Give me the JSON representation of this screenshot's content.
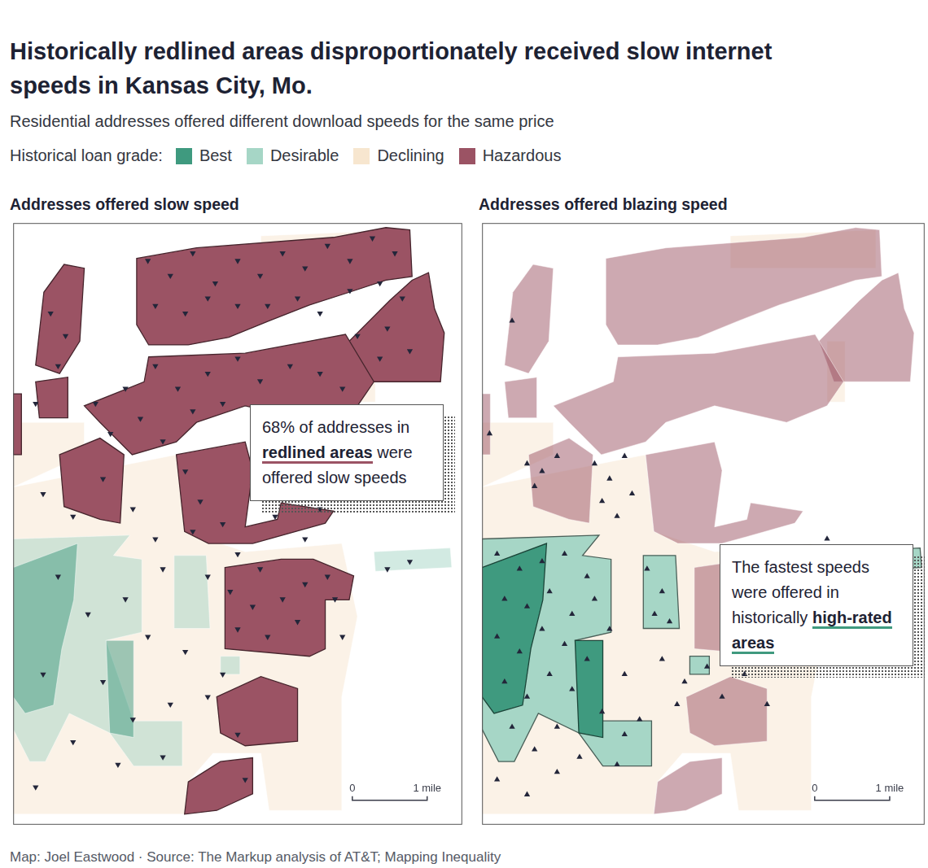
{
  "title": "Historically redlined areas disproportionately received slow internet speeds in Kansas City, Mo.",
  "subtitle": "Residential addresses offered different download speeds for the same price",
  "legend_title": "Historical loan grade:",
  "grades": [
    {
      "name": "Best",
      "color": "#3f9a7f"
    },
    {
      "name": "Desirable",
      "color": "#a6d6c6"
    },
    {
      "name": "Declining",
      "color": "#f7e6cf"
    },
    {
      "name": "Hazardous",
      "color": "#9b5364"
    }
  ],
  "source": "Map: Joel Eastwood · Source: The Markup analysis of AT&T; Mapping Inequality",
  "areas": [
    {
      "grade": "Declining",
      "polygon": [
        [
          0,
          4.49
        ],
        [
          2.18,
          4.92
        ],
        [
          2.29,
          3.9
        ],
        [
          3.1,
          3.63
        ],
        [
          4.39,
          3.74
        ],
        [
          4.6,
          2.77
        ],
        [
          4.39,
          1.7
        ],
        [
          4.39,
          0.19
        ],
        [
          3.42,
          0.19
        ],
        [
          3.31,
          0.95
        ],
        [
          2.67,
          0.95
        ],
        [
          2.34,
          0.57
        ],
        [
          2.29,
          0.14
        ],
        [
          0,
          0.14
        ]
      ]
    },
    {
      "grade": "Declining",
      "polygon": [
        [
          3.31,
          7.83
        ],
        [
          5.25,
          7.91
        ],
        [
          5.25,
          7.4
        ],
        [
          3.31,
          7.4
        ]
      ]
    },
    {
      "grade": "Declining",
      "polygon": [
        [
          4.6,
          6.43
        ],
        [
          4.84,
          6.43
        ],
        [
          4.84,
          5.62
        ],
        [
          4.6,
          5.62
        ]
      ]
    },
    {
      "grade": "Declining",
      "polygon": [
        [
          0,
          5.35
        ],
        [
          0.95,
          5.35
        ],
        [
          0.95,
          4.92
        ],
        [
          0,
          4.49
        ]
      ]
    },
    {
      "grade": "Desirable",
      "polygon": [
        [
          0,
          3.8
        ],
        [
          1.56,
          3.85
        ],
        [
          1.34,
          3.58
        ],
        [
          1.72,
          3.53
        ],
        [
          1.72,
          2.56
        ],
        [
          1.24,
          2.45
        ],
        [
          1.61,
          1.38
        ],
        [
          2.26,
          1.38
        ],
        [
          2.26,
          0.78
        ],
        [
          1.61,
          0.78
        ],
        [
          1.29,
          1.22
        ],
        [
          0.75,
          1.48
        ],
        [
          0.43,
          0.84
        ],
        [
          0.22,
          0.84
        ],
        [
          0,
          1.27
        ]
      ]
    },
    {
      "grade": "Desirable",
      "polygon": [
        [
          2.15,
          3.58
        ],
        [
          2.58,
          3.58
        ],
        [
          2.63,
          2.61
        ],
        [
          2.15,
          2.61
        ]
      ]
    },
    {
      "grade": "Desirable",
      "polygon": [
        [
          2.77,
          2.24
        ],
        [
          3.03,
          2.24
        ],
        [
          3.03,
          2.0
        ],
        [
          2.77,
          2.0
        ]
      ]
    },
    {
      "grade": "Desirable",
      "polygon": [
        [
          4.82,
          3.63
        ],
        [
          5.84,
          3.68
        ],
        [
          5.86,
          3.42
        ],
        [
          4.84,
          3.37
        ]
      ]
    },
    {
      "grade": "Best",
      "polygon": [
        [
          0,
          3.42
        ],
        [
          0.86,
          3.74
        ],
        [
          0.81,
          2.99
        ],
        [
          0.65,
          2.34
        ],
        [
          0.54,
          1.59
        ],
        [
          0.16,
          1.48
        ],
        [
          0,
          1.7
        ]
      ]
    },
    {
      "grade": "Best",
      "polygon": [
        [
          1.24,
          2.45
        ],
        [
          1.61,
          2.45
        ],
        [
          1.61,
          1.16
        ],
        [
          1.29,
          1.22
        ]
      ]
    },
    {
      "grade": "Hazardous",
      "polygon": [
        [
          1.65,
          7.53
        ],
        [
          2.45,
          7.67
        ],
        [
          4.28,
          7.81
        ],
        [
          4.98,
          7.94
        ],
        [
          5.3,
          7.91
        ],
        [
          5.33,
          7.29
        ],
        [
          4.98,
          7.24
        ],
        [
          4.49,
          7.08
        ],
        [
          3.96,
          6.91
        ],
        [
          3.42,
          6.7
        ],
        [
          2.88,
          6.48
        ],
        [
          2.34,
          6.38
        ],
        [
          1.81,
          6.38
        ],
        [
          1.65,
          6.65
        ]
      ]
    },
    {
      "grade": "Hazardous",
      "polygon": [
        [
          5.03,
          6.97
        ],
        [
          5.33,
          7.24
        ],
        [
          5.55,
          7.34
        ],
        [
          5.63,
          6.86
        ],
        [
          5.76,
          6.54
        ],
        [
          5.71,
          5.89
        ],
        [
          4.69,
          5.89
        ],
        [
          4.49,
          6.43
        ]
      ]
    },
    {
      "grade": "Hazardous",
      "polygon": [
        [
          1.81,
          6.22
        ],
        [
          3.1,
          6.27
        ],
        [
          3.96,
          6.43
        ],
        [
          4.44,
          6.52
        ],
        [
          4.82,
          5.89
        ],
        [
          4.6,
          5.57
        ],
        [
          4.06,
          5.35
        ],
        [
          3.1,
          5.57
        ],
        [
          2.45,
          5.35
        ],
        [
          2.18,
          5.09
        ],
        [
          1.59,
          4.92
        ],
        [
          1.16,
          5.35
        ],
        [
          0.95,
          5.57
        ],
        [
          1.48,
          5.78
        ],
        [
          1.75,
          5.89
        ]
      ]
    },
    {
      "grade": "Hazardous",
      "polygon": [
        [
          2.18,
          4.92
        ],
        [
          3.1,
          5.09
        ],
        [
          3.2,
          4.71
        ],
        [
          3.1,
          3.96
        ],
        [
          3.53,
          4.06
        ],
        [
          3.58,
          4.28
        ],
        [
          4.28,
          4.17
        ],
        [
          4.17,
          4.01
        ],
        [
          3.53,
          3.83
        ],
        [
          3.2,
          3.74
        ],
        [
          2.61,
          3.74
        ],
        [
          2.29,
          3.9
        ]
      ]
    },
    {
      "grade": "Hazardous",
      "polygon": [
        [
          0.41,
          7.08
        ],
        [
          0.68,
          7.45
        ],
        [
          0.95,
          7.4
        ],
        [
          0.89,
          6.43
        ],
        [
          0.62,
          6.0
        ],
        [
          0.3,
          6.11
        ]
      ]
    },
    {
      "grade": "Hazardous",
      "polygon": [
        [
          0.3,
          5.89
        ],
        [
          0.73,
          5.95
        ],
        [
          0.73,
          5.41
        ],
        [
          0.35,
          5.41
        ]
      ]
    },
    {
      "grade": "Hazardous",
      "polygon": [
        [
          0,
          5.73
        ],
        [
          0.11,
          5.73
        ],
        [
          0.11,
          4.92
        ],
        [
          0,
          4.92
        ]
      ]
    },
    {
      "grade": "Hazardous",
      "polygon": [
        [
          0.62,
          4.92
        ],
        [
          1.16,
          5.14
        ],
        [
          1.48,
          4.92
        ],
        [
          1.43,
          4.01
        ],
        [
          1.16,
          4.06
        ],
        [
          0.68,
          4.23
        ]
      ]
    },
    {
      "grade": "Hazardous",
      "polygon": [
        [
          2.83,
          3.42
        ],
        [
          3.58,
          3.53
        ],
        [
          4.01,
          3.53
        ],
        [
          4.55,
          3.31
        ],
        [
          4.49,
          2.99
        ],
        [
          4.17,
          2.99
        ],
        [
          4.17,
          2.34
        ],
        [
          3.96,
          2.24
        ],
        [
          2.83,
          2.34
        ]
      ]
    },
    {
      "grade": "Hazardous",
      "polygon": [
        [
          2.72,
          1.7
        ],
        [
          3.31,
          1.97
        ],
        [
          3.8,
          1.81
        ],
        [
          3.8,
          1.11
        ],
        [
          3.1,
          1.05
        ],
        [
          2.77,
          1.22
        ]
      ]
    },
    {
      "grade": "Hazardous",
      "polygon": [
        [
          2.34,
          0.57
        ],
        [
          2.77,
          0.84
        ],
        [
          3.2,
          0.89
        ],
        [
          3.2,
          0.41
        ],
        [
          2.72,
          0.19
        ],
        [
          2.29,
          0.14
        ]
      ]
    }
  ],
  "chart_data": [
    {
      "type": "map",
      "title": "Addresses offered slow speed",
      "xlim": [
        0,
        6
      ],
      "ylim": [
        0,
        8
      ],
      "xticks": [],
      "yticks": [],
      "tick_labels": false,
      "grid": false,
      "marker": "triangle-down",
      "color": "#23263a",
      "points": [
        [
          1.8,
          7.5
        ],
        [
          2.1,
          7.3
        ],
        [
          2.4,
          7.6
        ],
        [
          2.7,
          7.2
        ],
        [
          3.0,
          7.5
        ],
        [
          3.3,
          7.3
        ],
        [
          3.6,
          7.6
        ],
        [
          3.9,
          7.4
        ],
        [
          4.2,
          7.7
        ],
        [
          4.5,
          7.5
        ],
        [
          4.8,
          7.8
        ],
        [
          5.1,
          7.6
        ],
        [
          1.9,
          6.9
        ],
        [
          2.3,
          6.8
        ],
        [
          2.6,
          7.0
        ],
        [
          3.0,
          6.9
        ],
        [
          3.4,
          6.9
        ],
        [
          3.8,
          7.0
        ],
        [
          4.1,
          6.8
        ],
        [
          4.5,
          7.1
        ],
        [
          4.9,
          7.2
        ],
        [
          5.2,
          7.0
        ],
        [
          5.0,
          6.6
        ],
        [
          4.6,
          6.5
        ],
        [
          5.3,
          6.3
        ],
        [
          4.9,
          6.2
        ],
        [
          0.5,
          6.8
        ],
        [
          0.7,
          6.5
        ],
        [
          0.6,
          6.1
        ],
        [
          0.3,
          5.6
        ],
        [
          1.1,
          5.6
        ],
        [
          1.5,
          5.8
        ],
        [
          1.9,
          6.1
        ],
        [
          2.2,
          5.8
        ],
        [
          2.6,
          6.0
        ],
        [
          3.0,
          6.2
        ],
        [
          3.3,
          5.9
        ],
        [
          3.7,
          6.1
        ],
        [
          4.1,
          6.0
        ],
        [
          4.4,
          5.8
        ],
        [
          1.3,
          5.2
        ],
        [
          1.7,
          5.4
        ],
        [
          2.0,
          5.1
        ],
        [
          2.4,
          5.5
        ],
        [
          2.8,
          5.6
        ],
        [
          3.4,
          5.4
        ],
        [
          3.9,
          5.5
        ],
        [
          2.3,
          4.7
        ],
        [
          2.5,
          4.3
        ],
        [
          2.4,
          3.9
        ],
        [
          2.8,
          4.0
        ],
        [
          3.2,
          4.5
        ],
        [
          3.5,
          4.1
        ],
        [
          3.9,
          3.8
        ],
        [
          4.1,
          4.2
        ],
        [
          3.0,
          3.6
        ],
        [
          1.2,
          4.6
        ],
        [
          1.6,
          4.2
        ],
        [
          0.8,
          4.1
        ],
        [
          1.9,
          3.8
        ],
        [
          0.4,
          4.4
        ],
        [
          2.6,
          3.3
        ],
        [
          2.0,
          3.4
        ],
        [
          3.3,
          3.4
        ],
        [
          4.2,
          3.3
        ],
        [
          2.9,
          3.1
        ],
        [
          3.2,
          2.9
        ],
        [
          3.6,
          3.0
        ],
        [
          3.9,
          3.2
        ],
        [
          4.3,
          3.0
        ],
        [
          3.0,
          2.6
        ],
        [
          3.4,
          2.5
        ],
        [
          3.8,
          2.7
        ],
        [
          4.4,
          2.5
        ],
        [
          5.0,
          3.4
        ],
        [
          5.3,
          3.5
        ],
        [
          0.6,
          3.3
        ],
        [
          1.0,
          2.8
        ],
        [
          1.5,
          3.0
        ],
        [
          1.8,
          2.5
        ],
        [
          2.3,
          2.3
        ],
        [
          0.4,
          2.0
        ],
        [
          1.2,
          1.9
        ],
        [
          1.6,
          1.4
        ],
        [
          2.1,
          1.6
        ],
        [
          2.6,
          1.7
        ],
        [
          0.8,
          1.1
        ],
        [
          1.4,
          0.8
        ],
        [
          2.0,
          0.9
        ],
        [
          0.3,
          0.5
        ],
        [
          3.0,
          1.2
        ],
        [
          2.8,
          2.0
        ],
        [
          3.1,
          0.6
        ]
      ],
      "annotation": {
        "text_before": "68% of addresses in ",
        "emphasis": "redlined areas",
        "text_after": " were offered slow speeds",
        "grades": [
          "Hazardous"
        ]
      },
      "scale_bar": [
        {
          "value": 0,
          "label": "0"
        },
        {
          "value": 1,
          "label": "1 mile"
        }
      ]
    },
    {
      "type": "map",
      "title": "Addresses offered blazing speed",
      "xlim": [
        0,
        5.9
      ],
      "ylim": [
        0,
        8
      ],
      "xticks": [],
      "yticks": [],
      "tick_labels": false,
      "grid": false,
      "marker": "triangle-up",
      "color": "#23263a",
      "points": [
        [
          0.6,
          4.8
        ],
        [
          0.8,
          4.7
        ],
        [
          1.0,
          4.9
        ],
        [
          0.7,
          4.5
        ],
        [
          1.5,
          4.8
        ],
        [
          1.7,
          4.6
        ],
        [
          1.9,
          4.9
        ],
        [
          1.6,
          4.3
        ],
        [
          2.0,
          4.4
        ],
        [
          1.8,
          4.1
        ],
        [
          0.2,
          3.6
        ],
        [
          0.5,
          3.4
        ],
        [
          0.8,
          3.5
        ],
        [
          1.1,
          3.6
        ],
        [
          1.4,
          3.3
        ],
        [
          0.3,
          3.0
        ],
        [
          0.6,
          2.9
        ],
        [
          0.9,
          3.1
        ],
        [
          1.2,
          2.8
        ],
        [
          1.5,
          3.0
        ],
        [
          0.2,
          2.5
        ],
        [
          0.5,
          2.3
        ],
        [
          0.8,
          2.6
        ],
        [
          1.1,
          2.4
        ],
        [
          1.4,
          2.2
        ],
        [
          1.7,
          2.6
        ],
        [
          0.3,
          1.9
        ],
        [
          0.6,
          1.7
        ],
        [
          0.9,
          2.0
        ],
        [
          1.2,
          1.8
        ],
        [
          1.6,
          1.5
        ],
        [
          1.9,
          1.2
        ],
        [
          2.1,
          1.4
        ],
        [
          0.4,
          1.3
        ],
        [
          0.7,
          1.0
        ],
        [
          1.0,
          1.3
        ],
        [
          1.3,
          0.9
        ],
        [
          0.2,
          0.6
        ],
        [
          0.6,
          0.4
        ],
        [
          1.0,
          0.7
        ],
        [
          1.8,
          0.8
        ],
        [
          2.2,
          3.4
        ],
        [
          2.4,
          3.1
        ],
        [
          2.3,
          2.8
        ],
        [
          2.5,
          2.7
        ],
        [
          2.4,
          2.2
        ],
        [
          2.7,
          1.9
        ],
        [
          3.0,
          2.1
        ],
        [
          3.2,
          1.7
        ],
        [
          3.5,
          2.0
        ],
        [
          3.8,
          1.6
        ],
        [
          2.6,
          1.6
        ],
        [
          1.9,
          2.0
        ],
        [
          0.4,
          6.7
        ],
        [
          0.1,
          5.2
        ],
        [
          4.6,
          3.8
        ]
      ],
      "annotation": {
        "text_before": "The fastest speeds were offered in historically ",
        "emphasis": "high-rated areas",
        "text_after": "",
        "grades": [
          "Best",
          "Desirable"
        ]
      },
      "scale_bar": [
        {
          "value": 0,
          "label": "0"
        },
        {
          "value": 1,
          "label": "1 mile"
        }
      ]
    }
  ]
}
